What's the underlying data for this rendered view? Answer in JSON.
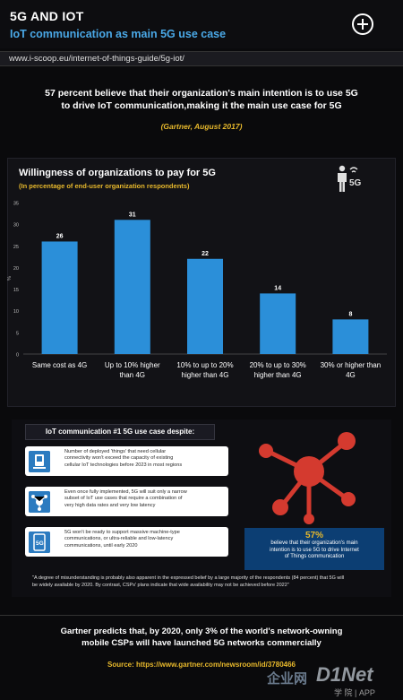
{
  "header": {
    "title": "5G AND IOT",
    "subtitle": "IoT communication as main 5G use case",
    "url": "www.i-scoop.eu/internet-of-things-guide/5g-iot/"
  },
  "intro": {
    "line1": "57 percent believe that their organization's main intention is to use 5G",
    "line2": "to drive IoT communication,making it the main use case for 5G",
    "citation": "(Gartner, August 2017)"
  },
  "chart_header": {
    "title": "Willingness of organizations to pay for 5G",
    "subtitle": "(In percentage of end-user organization respondents)",
    "icon_label": "5G"
  },
  "chart_data": {
    "type": "bar",
    "title": "Willingness of organizations to pay for 5G",
    "subtitle": "(In percentage of end-user organization respondents)",
    "ylabel": "%",
    "xlabel": "",
    "categories": [
      [
        "Same cost as 4G"
      ],
      [
        "Up to 10% higher",
        "than 4G"
      ],
      [
        "10% to up to 20%",
        "higher than 4G"
      ],
      [
        "20% to up to 30%",
        "higher than 4G"
      ],
      [
        "30% or higher than",
        "4G"
      ]
    ],
    "values": [
      26,
      31,
      22,
      14,
      8
    ],
    "ylim": [
      0,
      35
    ],
    "yticks": [
      0,
      5,
      10,
      15,
      20,
      25,
      30,
      35
    ],
    "grid": false,
    "bar_color": "#2b8fd9"
  },
  "despite": {
    "heading": "IoT communication #1 5G use case despite:",
    "items": [
      {
        "icon": "sensor-device-icon",
        "lines": [
          "Number of deployed 'things' that need cellular",
          "connectivity won't exceed the capacity of existing",
          "cellular IoT technologies before 2023 in most regions"
        ]
      },
      {
        "icon": "network-nodes-icon",
        "lines": [
          "Even once fully implemented, 5G will suit only a narrow",
          "subset of IoT use cases that require a combination of",
          "very high data rates and very low latency"
        ]
      },
      {
        "icon": "5g-phone-icon",
        "lines": [
          "5G won't be ready to support massive machine-type",
          "communications, or ultra-reliable and low-latency",
          "communications, until early 2020"
        ]
      }
    ]
  },
  "stat": {
    "number": "57%",
    "lines": [
      "believe that their organization's main",
      "intention is to use 5G to drive Internet",
      "of Things communication"
    ]
  },
  "quote": {
    "line1": "\"A degree of misunderstanding is probably also apparent in the expressed belief by a large majority of the respondents (84 percent) that 5G will",
    "line2": "be widely available by 2020. By contrast, CSPs' plans indicate that wide availability may not be achieved before 2022\""
  },
  "footer": {
    "line1": "Gartner predicts that, by 2020, only 3% of the world's network-owning",
    "line2": "mobile CSPs will have launched 5G networks commercially",
    "source": "Source: https://www.gartner.com/newsroom/id/3780466"
  },
  "watermark": {
    "cn": "企业网",
    "logo": "D1Net",
    "sub": "学 院 | APP"
  },
  "colors": {
    "accent_blue": "#4aa8e6",
    "accent_yellow": "#e8b92c",
    "bar_blue": "#2b8fd9",
    "network_red": "#d43a2f",
    "stat_box": "#0c3e73"
  }
}
